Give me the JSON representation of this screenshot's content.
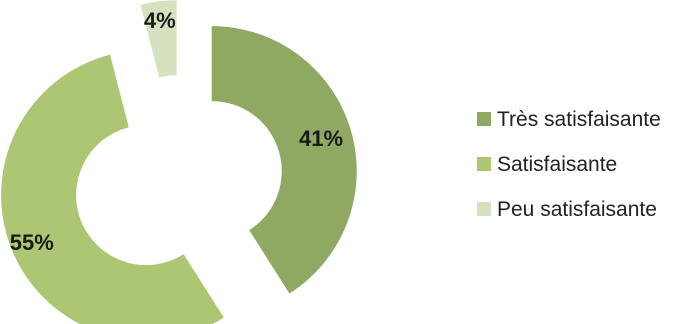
{
  "chart_data": {
    "type": "pie",
    "style": "exploded-donut",
    "categories": [
      "Très satisfaisante",
      "Satisfaisante",
      "Peu satisfaisante"
    ],
    "values": [
      41,
      55,
      4
    ],
    "data_labels": [
      "41%",
      "55%",
      "4%"
    ],
    "colors": [
      "#8fa963",
      "#acc673",
      "#d5e1bf"
    ],
    "legend_position": "right"
  }
}
